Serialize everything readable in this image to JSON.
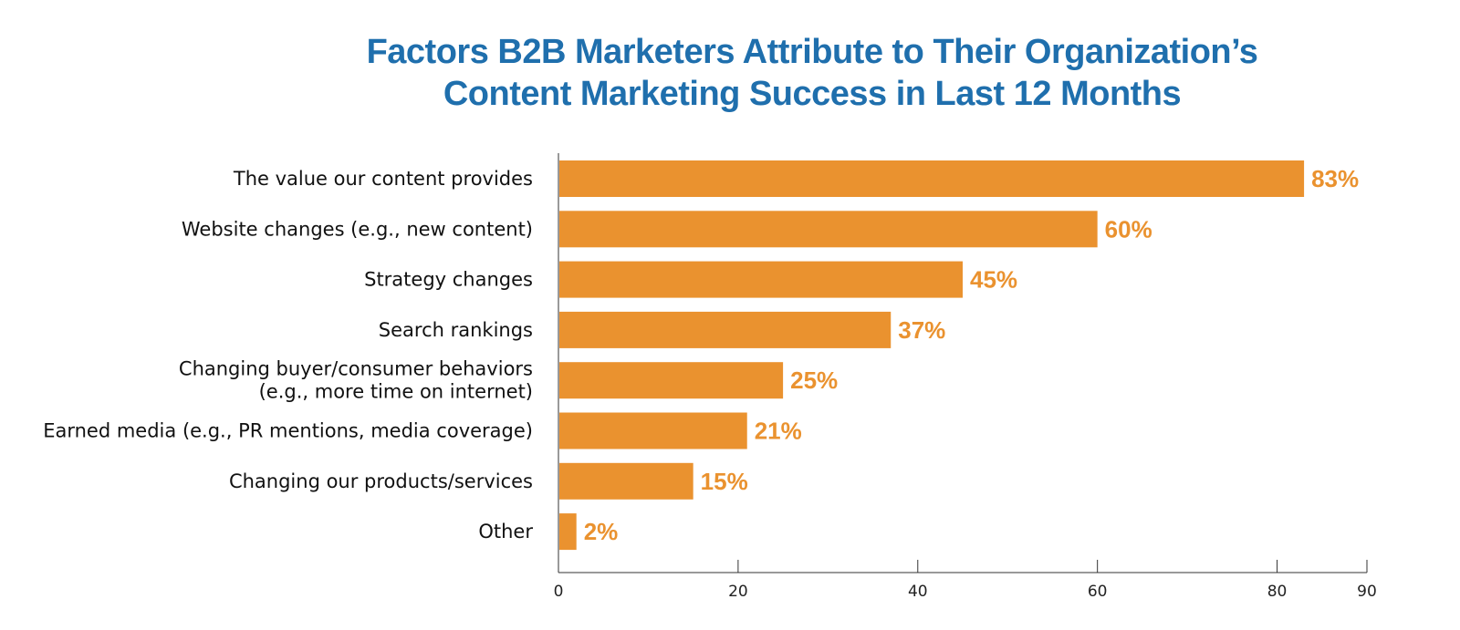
{
  "chart_data": {
    "type": "bar",
    "orientation": "horizontal",
    "title_lines": [
      "Factors B2B Marketers Attribute to Their Organization’s",
      "Content Marketing Success in Last 12 Months"
    ],
    "categories": [
      [
        "The value our content provides"
      ],
      [
        "Website changes (e.g., new content)"
      ],
      [
        "Strategy changes"
      ],
      [
        "Search rankings"
      ],
      [
        "Changing buyer/consumer behaviors",
        "(e.g., more time on internet)"
      ],
      [
        "Earned media (e.g., PR mentions, media coverage)"
      ],
      [
        "Changing our products/services"
      ],
      [
        "Other"
      ]
    ],
    "values": [
      83,
      60,
      45,
      37,
      25,
      21,
      15,
      2
    ],
    "value_labels": [
      "83%",
      "60%",
      "45%",
      "37%",
      "25%",
      "21%",
      "15%",
      "2%"
    ],
    "xlim": [
      0,
      90
    ],
    "xticks": [
      0,
      20,
      40,
      60,
      80,
      90
    ],
    "xtick_labels": [
      "0",
      "20",
      "40",
      "60",
      "80",
      "90"
    ],
    "grid": false,
    "bar_color": "#ea922f",
    "label_color": "#ea922f",
    "title_color": "#1f6fad"
  }
}
